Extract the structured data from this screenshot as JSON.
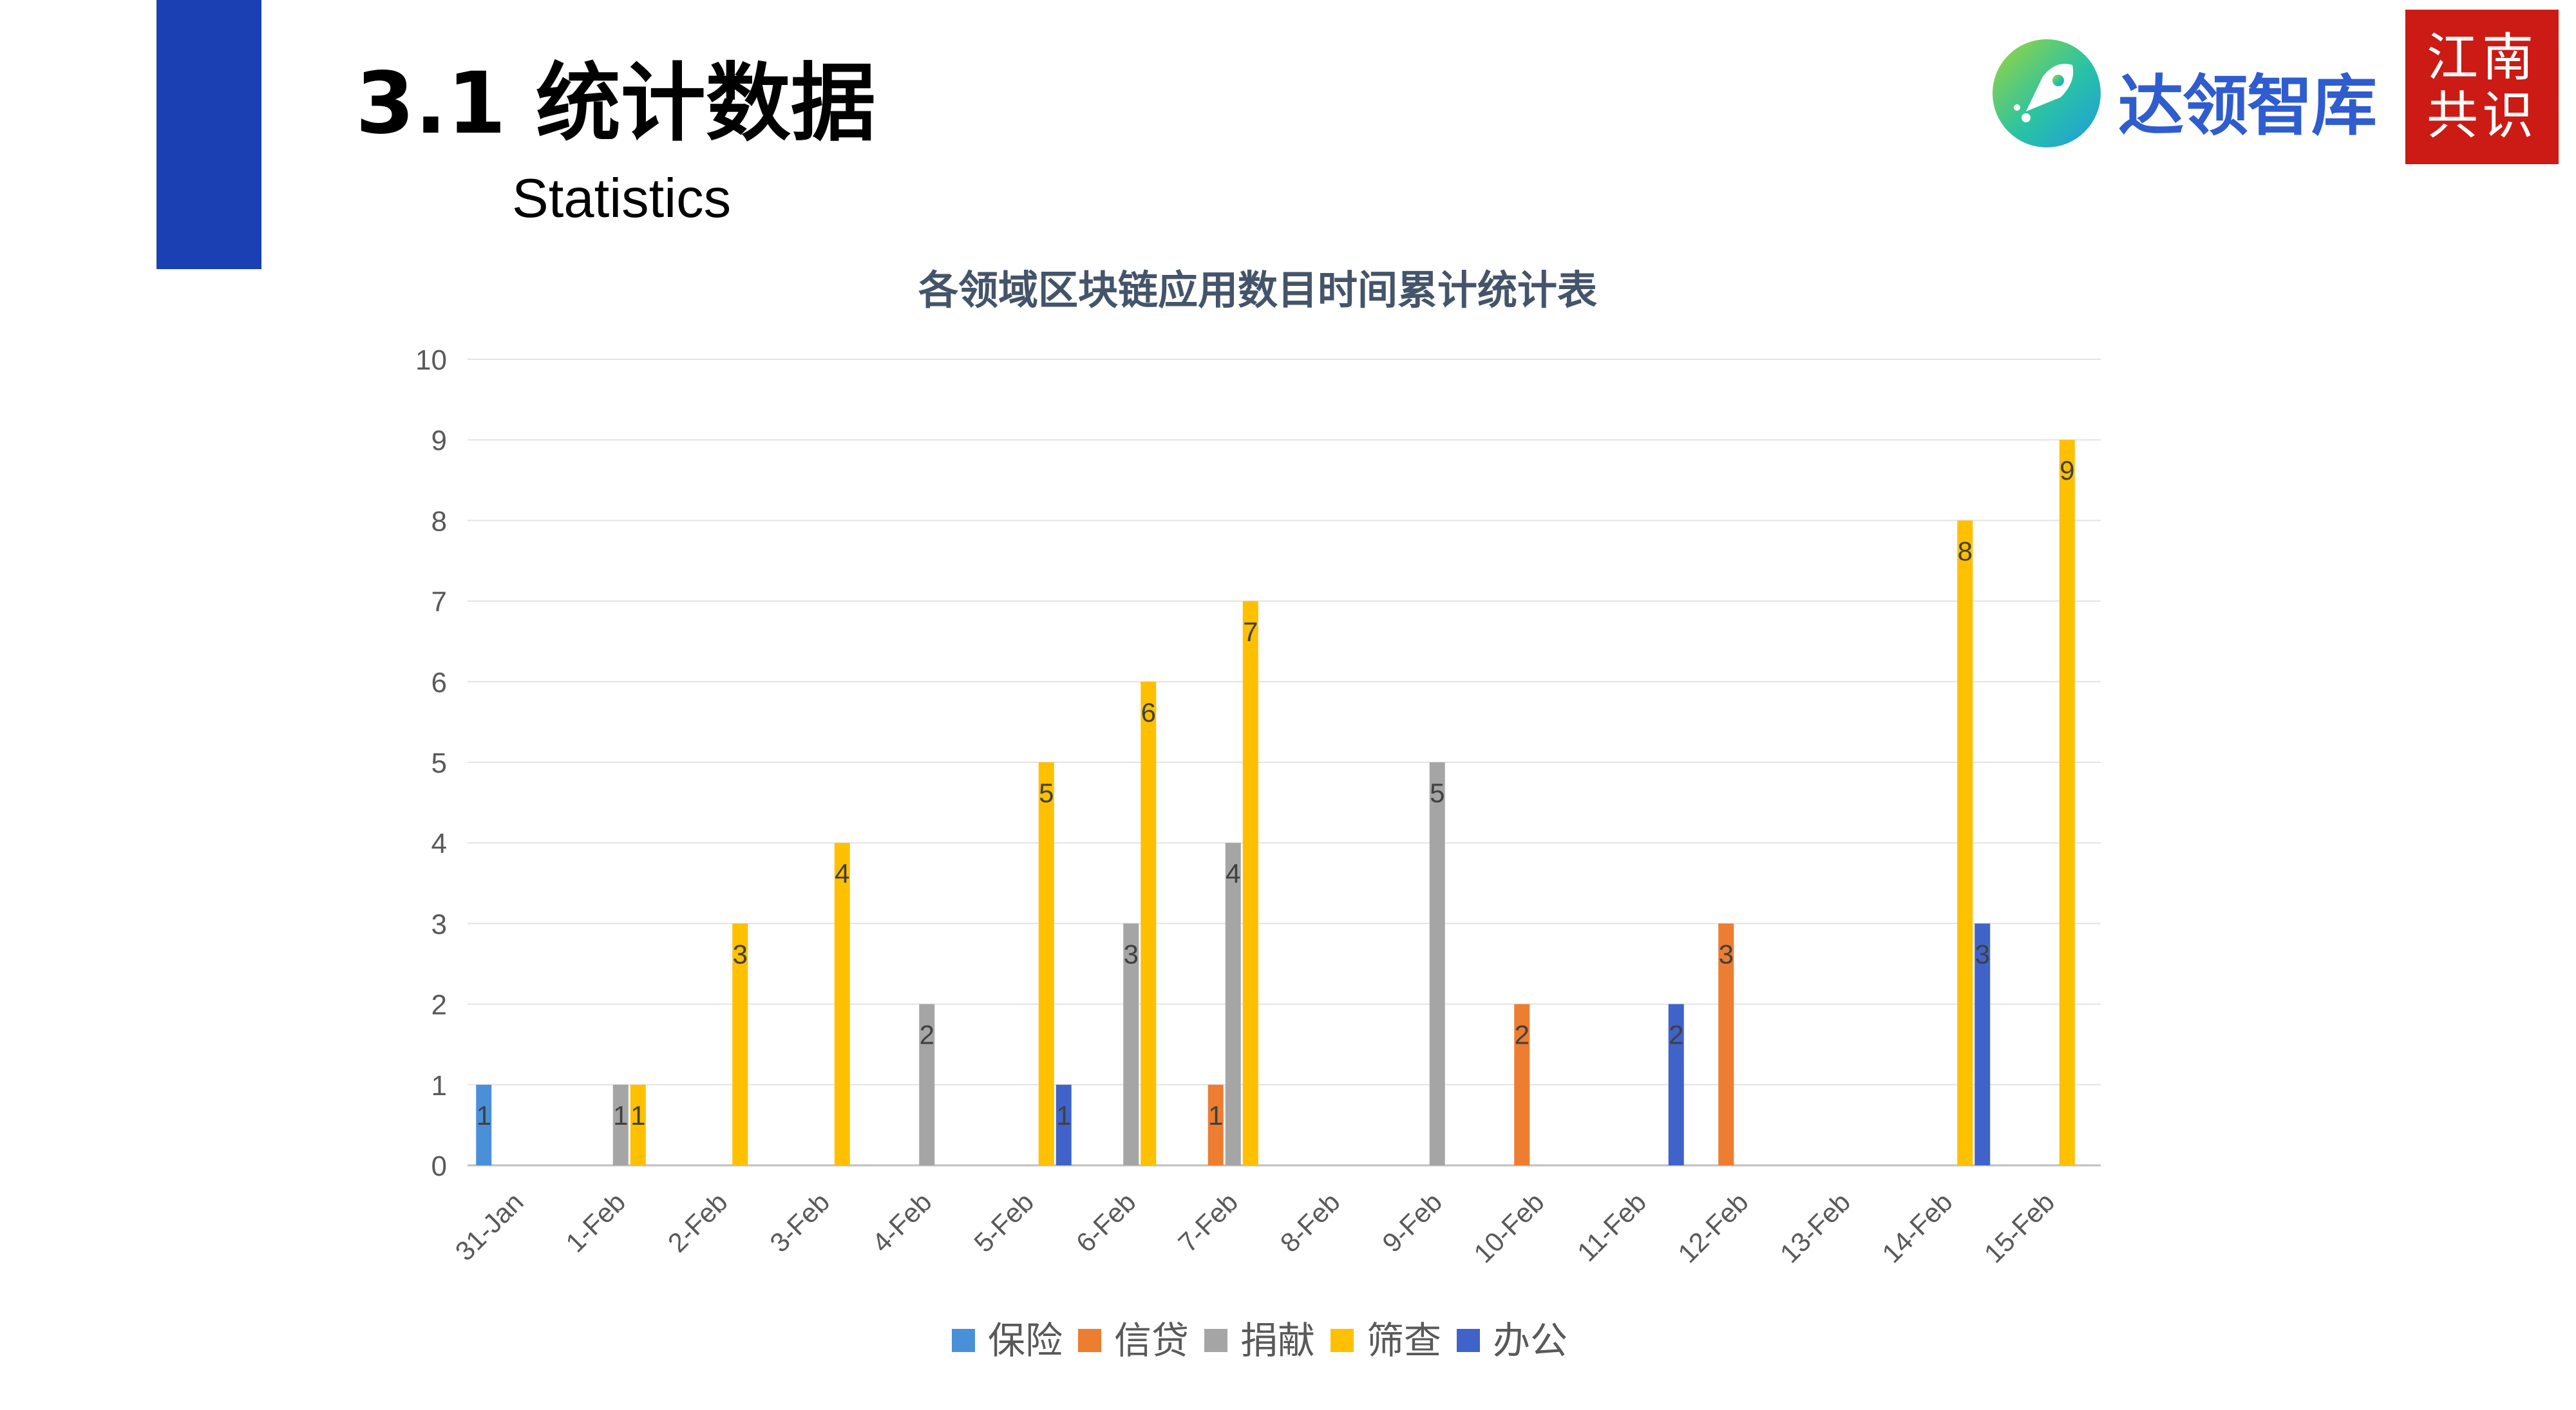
{
  "slide": {
    "title": "3.1 统计数据",
    "subtitle": "Statistics",
    "logo_text": "达领智库",
    "seal_text": "江南共识"
  },
  "colors": {
    "accent": "#1a40b4",
    "logo_blue": "#2f5ccf",
    "seal_red": "#cc1a14"
  },
  "chart_data": {
    "type": "bar",
    "title": "各领域区块链应用数目时间累计统计表",
    "xlabel": "",
    "ylabel": "",
    "ylim": [
      0,
      10
    ],
    "y_ticks": [
      0,
      1,
      2,
      3,
      4,
      5,
      6,
      7,
      8,
      9,
      10
    ],
    "grid": true,
    "legend_position": "bottom",
    "data_labels": true,
    "categories": [
      "31-Jan",
      "1-Feb",
      "2-Feb",
      "3-Feb",
      "4-Feb",
      "5-Feb",
      "6-Feb",
      "7-Feb",
      "8-Feb",
      "9-Feb",
      "10-Feb",
      "11-Feb",
      "12-Feb",
      "13-Feb",
      "14-Feb",
      "15-Feb"
    ],
    "series": [
      {
        "name": "保险",
        "color": "#4a90d9",
        "values": [
          1,
          null,
          null,
          null,
          null,
          null,
          null,
          null,
          null,
          null,
          null,
          null,
          null,
          null,
          null,
          null
        ]
      },
      {
        "name": "信贷",
        "color": "#ed7d31",
        "values": [
          null,
          null,
          null,
          null,
          null,
          null,
          null,
          1,
          null,
          null,
          2,
          null,
          3,
          null,
          null,
          null
        ]
      },
      {
        "name": "捐献",
        "color": "#a5a5a5",
        "values": [
          null,
          1,
          null,
          null,
          2,
          null,
          3,
          4,
          null,
          5,
          null,
          null,
          null,
          null,
          null,
          null
        ]
      },
      {
        "name": "筛查",
        "color": "#ffc000",
        "values": [
          null,
          1,
          3,
          4,
          null,
          5,
          6,
          7,
          null,
          null,
          null,
          null,
          null,
          null,
          8,
          9
        ]
      },
      {
        "name": "办公",
        "color": "#3f63c9",
        "values": [
          null,
          null,
          null,
          null,
          null,
          1,
          null,
          null,
          null,
          null,
          null,
          2,
          null,
          null,
          3,
          null
        ]
      }
    ]
  }
}
